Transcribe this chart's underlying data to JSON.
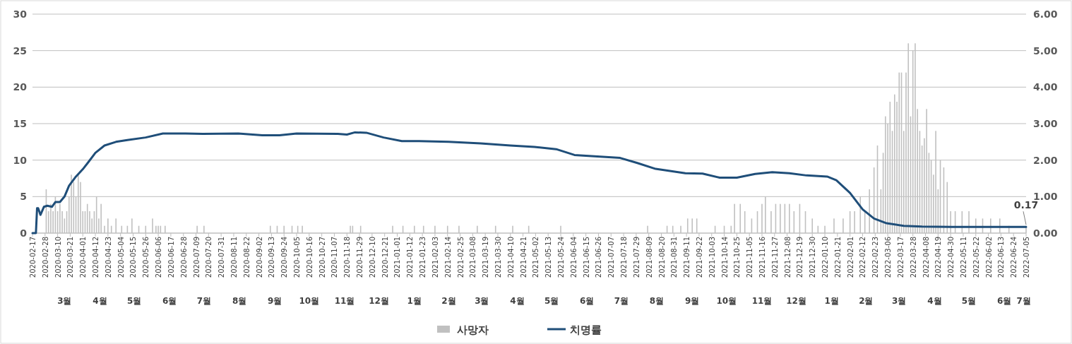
{
  "chart_data": {
    "type": "bar",
    "legend": "bottom",
    "grid": "y",
    "xlim": [
      "2020-02-17",
      "2022-07-05"
    ],
    "xticks": [
      "2020-02-17",
      "2020-02-28",
      "2020-03-10",
      "2020-03-21",
      "2020-04-01",
      "2020-04-12",
      "2020-04-23",
      "2020-05-04",
      "2020-05-15",
      "2020-05-26",
      "2020-06-06",
      "2020-06-17",
      "2020-06-28",
      "2020-07-09",
      "2020-07-20",
      "2020-07-31",
      "2020-08-11",
      "2020-08-22",
      "2020-09-02",
      "2020-09-13",
      "2020-09-24",
      "2020-10-05",
      "2020-10-16",
      "2020-10-27",
      "2020-11-07",
      "2020-11-18",
      "2020-11-29",
      "2020-12-10",
      "2020-12-21",
      "2021-01-01",
      "2021-01-12",
      "2021-01-23",
      "2021-02-03",
      "2021-02-14",
      "2021-02-25",
      "2021-03-08",
      "2021-03-19",
      "2021-03-30",
      "2021-04-10",
      "2021-04-21",
      "2021-05-02",
      "2021-05-13",
      "2021-05-24",
      "2021-06-04",
      "2021-06-15",
      "2021-06-26",
      "2021-07-07",
      "2021-07-18",
      "2021-07-29",
      "2021-08-09",
      "2021-08-20",
      "2021-08-31",
      "2021-09-11",
      "2021-09-22",
      "2021-10-03",
      "2021-10-14",
      "2021-10-25",
      "2021-11-05",
      "2021-11-16",
      "2021-11-27",
      "2021-12-08",
      "2021-12-19",
      "2021-12-30",
      "2022-01-10",
      "2022-01-21",
      "2022-02-01",
      "2022-02-12",
      "2022-02-23",
      "2022-03-06",
      "2022-03-17",
      "2022-03-28",
      "2022-04-08",
      "2022-04-19",
      "2022-04-30",
      "2022-05-11",
      "2022-05-22",
      "2022-06-02",
      "2022-06-13",
      "2022-06-24",
      "2022-07-05"
    ],
    "x2lim": [
      "2020-02-17",
      "2022-07-05"
    ],
    "x2ticks": [
      {
        "value": "2020-03-16",
        "label": "3월"
      },
      {
        "value": "2020-04-16",
        "label": "4월"
      },
      {
        "value": "2020-05-16",
        "label": "5월"
      },
      {
        "value": "2020-06-16",
        "label": "6월"
      },
      {
        "value": "2020-07-16",
        "label": "7월"
      },
      {
        "value": "2020-08-16",
        "label": "8월"
      },
      {
        "value": "2020-09-16",
        "label": "9월"
      },
      {
        "value": "2020-10-16",
        "label": "10월"
      },
      {
        "value": "2020-11-16",
        "label": "11월"
      },
      {
        "value": "2020-12-16",
        "label": "12월"
      },
      {
        "value": "2021-01-16",
        "label": "1월"
      },
      {
        "value": "2021-02-15",
        "label": "2월"
      },
      {
        "value": "2021-03-16",
        "label": "3월"
      },
      {
        "value": "2021-04-16",
        "label": "4월"
      },
      {
        "value": "2021-05-16",
        "label": "5월"
      },
      {
        "value": "2021-06-16",
        "label": "6월"
      },
      {
        "value": "2021-07-16",
        "label": "7월"
      },
      {
        "value": "2021-08-16",
        "label": "8월"
      },
      {
        "value": "2021-09-16",
        "label": "9월"
      },
      {
        "value": "2021-10-16",
        "label": "10월"
      },
      {
        "value": "2021-11-16",
        "label": "11월"
      },
      {
        "value": "2021-12-16",
        "label": "12월"
      },
      {
        "value": "2022-01-16",
        "label": "1월"
      },
      {
        "value": "2022-02-15",
        "label": "2월"
      },
      {
        "value": "2022-03-16",
        "label": "3월"
      },
      {
        "value": "2022-04-16",
        "label": "4월"
      },
      {
        "value": "2022-05-16",
        "label": "5월"
      },
      {
        "value": "2022-06-16",
        "label": "6월"
      },
      {
        "value": "2022-07-03",
        "label": "7월"
      }
    ],
    "ylim": [
      0,
      30
    ],
    "yticks": [
      0,
      5,
      10,
      15,
      20,
      25,
      30
    ],
    "y2lim": [
      0,
      6
    ],
    "y2ticks": [
      {
        "value": 0,
        "label": "0.00"
      },
      {
        "value": 1,
        "label": "1.00"
      },
      {
        "value": 2,
        "label": "2.00"
      },
      {
        "value": 3,
        "label": "3.00"
      },
      {
        "value": 4,
        "label": "4.00"
      },
      {
        "value": 5,
        "label": "5.00"
      },
      {
        "value": 6,
        "label": "6.00"
      }
    ],
    "annotations": [
      {
        "text": "0.17",
        "x": "2022-07-05",
        "y": 0.17
      }
    ],
    "series": [
      {
        "name": "사망자",
        "color": "#c0c0c0",
        "x": [
          "2020-02-29",
          "2020-03-02",
          "2020-03-04",
          "2020-03-06",
          "2020-03-08",
          "2020-03-10",
          "2020-03-12",
          "2020-03-14",
          "2020-03-16",
          "2020-03-18",
          "2020-03-20",
          "2020-03-22",
          "2020-03-24",
          "2020-03-26",
          "2020-03-28",
          "2020-03-30",
          "2020-04-01",
          "2020-04-03",
          "2020-04-05",
          "2020-04-07",
          "2020-04-09",
          "2020-04-11",
          "2020-04-13",
          "2020-04-15",
          "2020-04-17",
          "2020-04-20",
          "2020-04-23",
          "2020-04-26",
          "2020-04-30",
          "2020-05-05",
          "2020-05-10",
          "2020-05-14",
          "2020-05-20",
          "2020-05-26",
          "2020-06-01",
          "2020-06-04",
          "2020-06-06",
          "2020-06-08",
          "2020-06-12",
          "2020-07-10",
          "2020-07-16",
          "2020-09-12",
          "2020-09-18",
          "2020-09-24",
          "2020-10-01",
          "2020-10-06",
          "2020-10-10",
          "2020-11-21",
          "2020-11-23",
          "2020-11-30",
          "2020-12-28",
          "2021-01-06",
          "2021-01-16",
          "2021-01-24",
          "2021-02-03",
          "2021-02-14",
          "2021-02-24",
          "2021-03-12",
          "2021-03-28",
          "2021-04-12",
          "2021-04-26",
          "2021-05-24",
          "2021-08-08",
          "2021-08-25",
          "2021-08-30",
          "2021-09-06",
          "2021-09-12",
          "2021-09-16",
          "2021-09-20",
          "2021-10-06",
          "2021-10-14",
          "2021-10-20",
          "2021-10-23",
          "2021-10-28",
          "2021-11-01",
          "2021-11-07",
          "2021-11-12",
          "2021-11-16",
          "2021-11-19",
          "2021-11-24",
          "2021-11-28",
          "2021-12-02",
          "2021-12-06",
          "2021-12-10",
          "2021-12-14",
          "2021-12-19",
          "2021-12-24",
          "2021-12-30",
          "2022-01-04",
          "2022-01-10",
          "2022-01-18",
          "2022-01-26",
          "2022-02-01",
          "2022-02-05",
          "2022-02-10",
          "2022-02-14",
          "2022-02-18",
          "2022-02-22",
          "2022-02-25",
          "2022-02-28",
          "2022-03-02",
          "2022-03-04",
          "2022-03-06",
          "2022-03-08",
          "2022-03-10",
          "2022-03-12",
          "2022-03-14",
          "2022-03-16",
          "2022-03-18",
          "2022-03-20",
          "2022-03-22",
          "2022-03-24",
          "2022-03-26",
          "2022-03-28",
          "2022-03-30",
          "2022-04-01",
          "2022-04-03",
          "2022-04-05",
          "2022-04-07",
          "2022-04-09",
          "2022-04-11",
          "2022-04-13",
          "2022-04-15",
          "2022-04-17",
          "2022-04-19",
          "2022-04-21",
          "2022-04-24",
          "2022-04-27",
          "2022-04-30",
          "2022-05-04",
          "2022-05-10",
          "2022-05-16",
          "2022-05-22",
          "2022-05-28",
          "2022-06-04",
          "2022-06-12",
          "2022-06-20",
          "2022-07-05"
        ],
        "values": [
          6,
          3,
          4,
          3,
          5,
          3,
          4,
          3,
          2,
          3,
          5,
          8,
          7,
          5,
          8,
          7,
          3,
          3,
          4,
          3,
          2,
          3,
          5,
          2,
          4,
          1,
          2,
          1,
          2,
          1,
          1,
          2,
          1,
          1,
          2,
          1,
          1,
          1,
          1,
          1,
          1,
          1,
          1,
          1,
          1,
          1,
          1,
          1,
          1,
          1,
          1,
          1,
          1,
          1,
          1,
          1,
          1,
          1,
          1,
          1,
          1,
          1,
          1,
          1,
          1,
          1,
          2,
          2,
          2,
          1,
          1,
          1,
          4,
          4,
          3,
          2,
          3,
          4,
          5,
          3,
          4,
          4,
          4,
          4,
          3,
          4,
          3,
          2,
          1,
          1,
          2,
          2,
          3,
          3,
          5,
          3,
          6,
          9,
          12,
          6,
          11,
          16,
          15,
          18,
          14,
          19,
          18,
          22,
          22,
          14,
          22,
          26,
          16,
          25,
          26,
          17,
          14,
          12,
          13,
          17,
          11,
          10,
          8,
          14,
          6,
          10,
          9,
          7,
          3,
          3,
          3,
          3,
          2,
          2,
          2,
          2,
          1,
          1
        ]
      },
      {
        "name": "치명률",
        "type": "line",
        "axis": "y2",
        "color": "#1f4e79",
        "x": [
          "2020-02-17",
          "2020-02-20",
          "2020-02-21",
          "2020-02-22",
          "2020-02-24",
          "2020-02-27",
          "2020-03-01",
          "2020-03-05",
          "2020-03-08",
          "2020-03-12",
          "2020-03-16",
          "2020-03-20",
          "2020-03-26",
          "2020-04-01",
          "2020-04-06",
          "2020-04-12",
          "2020-04-20",
          "2020-04-30",
          "2020-05-10",
          "2020-05-26",
          "2020-06-10",
          "2020-06-30",
          "2020-07-15",
          "2020-08-15",
          "2020-09-05",
          "2020-09-20",
          "2020-10-05",
          "2020-11-10",
          "2020-11-18",
          "2020-11-25",
          "2020-12-05",
          "2020-12-20",
          "2021-01-05",
          "2021-01-20",
          "2021-02-15",
          "2021-03-15",
          "2021-04-10",
          "2021-05-01",
          "2021-05-20",
          "2021-06-05",
          "2021-06-25",
          "2021-07-15",
          "2021-07-30",
          "2021-08-15",
          "2021-09-10",
          "2021-09-25",
          "2021-10-10",
          "2021-10-25",
          "2021-11-10",
          "2021-11-25",
          "2021-12-10",
          "2021-12-25",
          "2022-01-12",
          "2022-01-20",
          "2022-02-01",
          "2022-02-12",
          "2022-02-22",
          "2022-03-05",
          "2022-03-20",
          "2022-04-05",
          "2022-05-01",
          "2022-06-01",
          "2022-07-05"
        ],
        "values": [
          0,
          0,
          0.68,
          0.68,
          0.5,
          0.72,
          0.75,
          0.72,
          0.85,
          0.85,
          1.0,
          1.3,
          1.55,
          1.75,
          1.95,
          2.2,
          2.4,
          2.5,
          2.55,
          2.62,
          2.73,
          2.73,
          2.72,
          2.73,
          2.68,
          2.68,
          2.73,
          2.72,
          2.7,
          2.76,
          2.75,
          2.62,
          2.52,
          2.52,
          2.5,
          2.46,
          2.4,
          2.36,
          2.3,
          2.14,
          2.1,
          2.06,
          1.92,
          1.76,
          1.64,
          1.63,
          1.52,
          1.52,
          1.62,
          1.67,
          1.64,
          1.58,
          1.55,
          1.45,
          1.1,
          0.65,
          0.4,
          0.27,
          0.2,
          0.18,
          0.17,
          0.17,
          0.17
        ]
      }
    ]
  }
}
